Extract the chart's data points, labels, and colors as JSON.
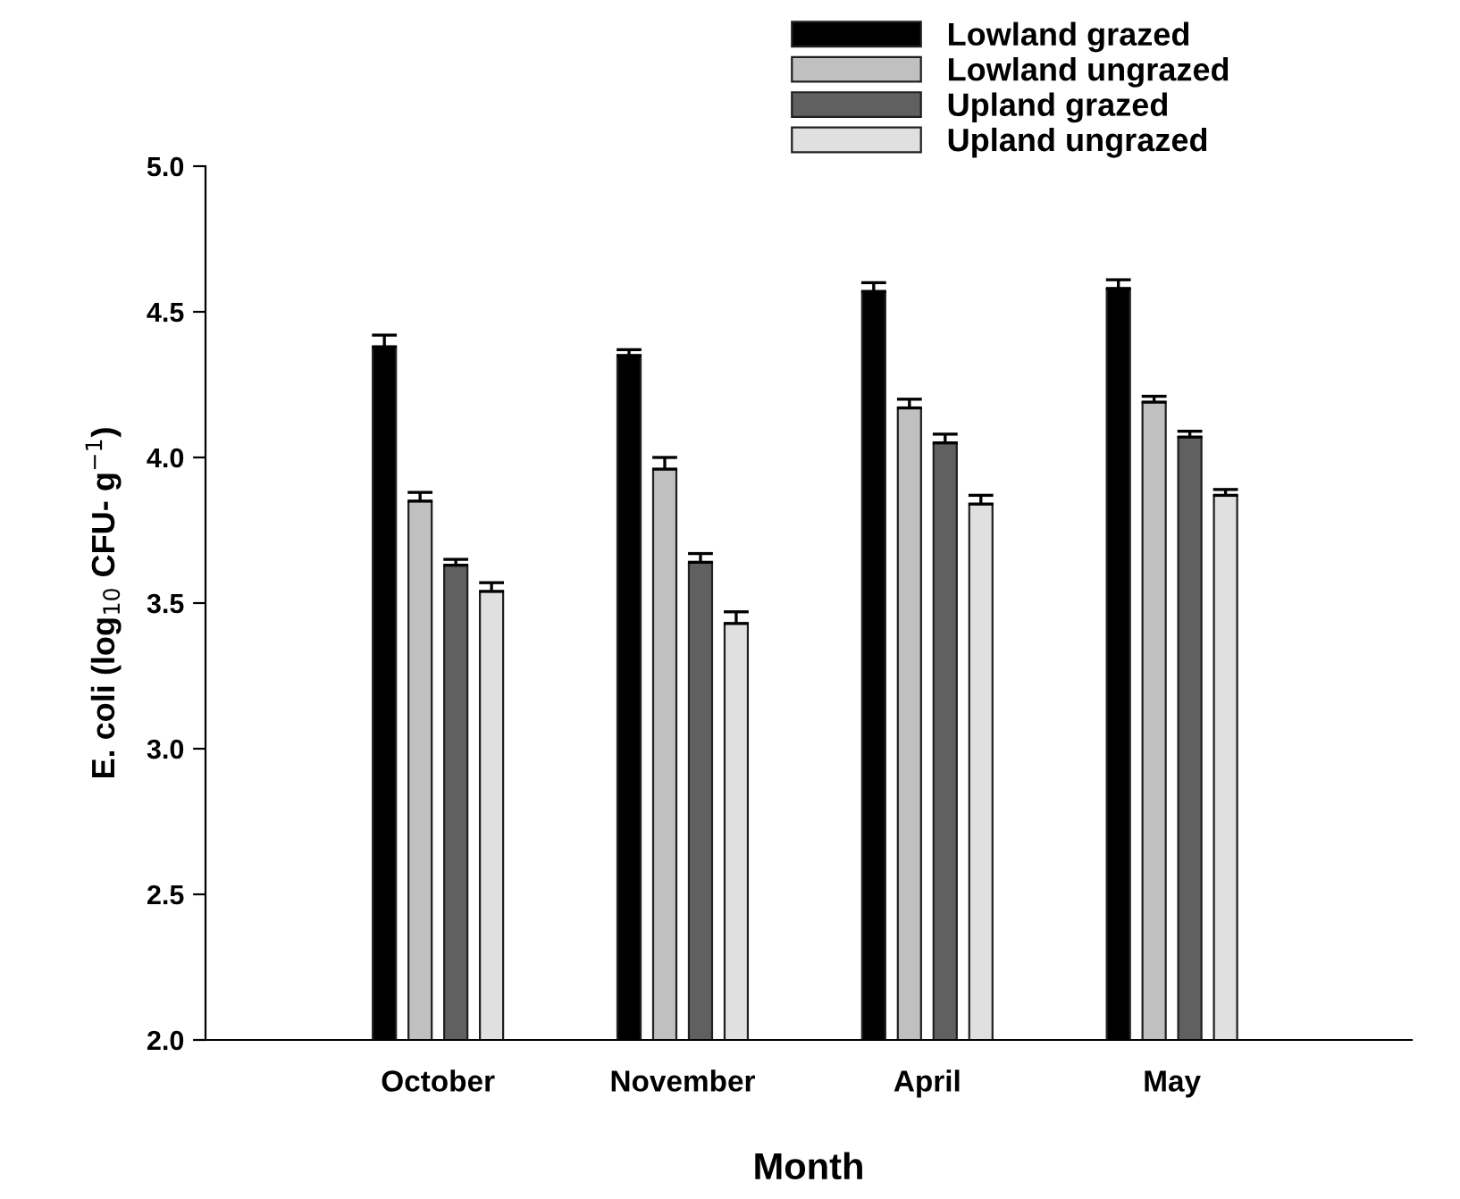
{
  "chart_data": {
    "type": "bar",
    "xlabel": "Month",
    "ylabel": "E. coli (log$_{10}$ CFU- g$^{−1}$)",
    "categories": [
      "October",
      "November",
      "April",
      "May"
    ],
    "series": [
      {
        "name": "Lowland grazed",
        "color": "#000000",
        "values": [
          4.38,
          4.35,
          4.57,
          4.58
        ],
        "errors": [
          [
            4.38,
            4.42
          ],
          [
            4.35,
            4.37
          ],
          [
            4.57,
            4.6
          ],
          [
            4.58,
            4.61
          ]
        ]
      },
      {
        "name": "Lowland ungrazed",
        "color": "#c0c0c0",
        "values": [
          3.85,
          3.96,
          4.17,
          4.19
        ],
        "errors": [
          [
            3.85,
            3.88
          ],
          [
            3.96,
            4.0
          ],
          [
            4.17,
            4.2
          ],
          [
            4.19,
            4.21
          ]
        ]
      },
      {
        "name": "Upland grazed",
        "color": "#606060",
        "values": [
          3.63,
          3.64,
          4.05,
          4.07
        ],
        "errors": [
          [
            3.63,
            3.65
          ],
          [
            3.64,
            3.67
          ],
          [
            4.05,
            4.08
          ],
          [
            4.07,
            4.09
          ]
        ]
      },
      {
        "name": "Upland ungrazed",
        "color": "#e0e0e0",
        "values": [
          3.54,
          3.43,
          3.84,
          3.87
        ],
        "errors": [
          [
            3.54,
            3.57
          ],
          [
            3.43,
            3.47
          ],
          [
            3.84,
            3.87
          ],
          [
            3.87,
            3.89
          ]
        ]
      }
    ],
    "ylim": [
      2.0,
      5.0
    ],
    "yticks": [
      {
        "value": 2.0,
        "label": "2.0"
      },
      {
        "value": 2.5,
        "label": "2.5"
      },
      {
        "value": 3.0,
        "label": "3.0"
      },
      {
        "value": 3.5,
        "label": "3.5"
      },
      {
        "value": 4.0,
        "label": "4.0"
      },
      {
        "value": 4.5,
        "label": "4.5"
      },
      {
        "value": 5.0,
        "label": "5.0"
      }
    ],
    "grid": false,
    "legend": "top right"
  }
}
